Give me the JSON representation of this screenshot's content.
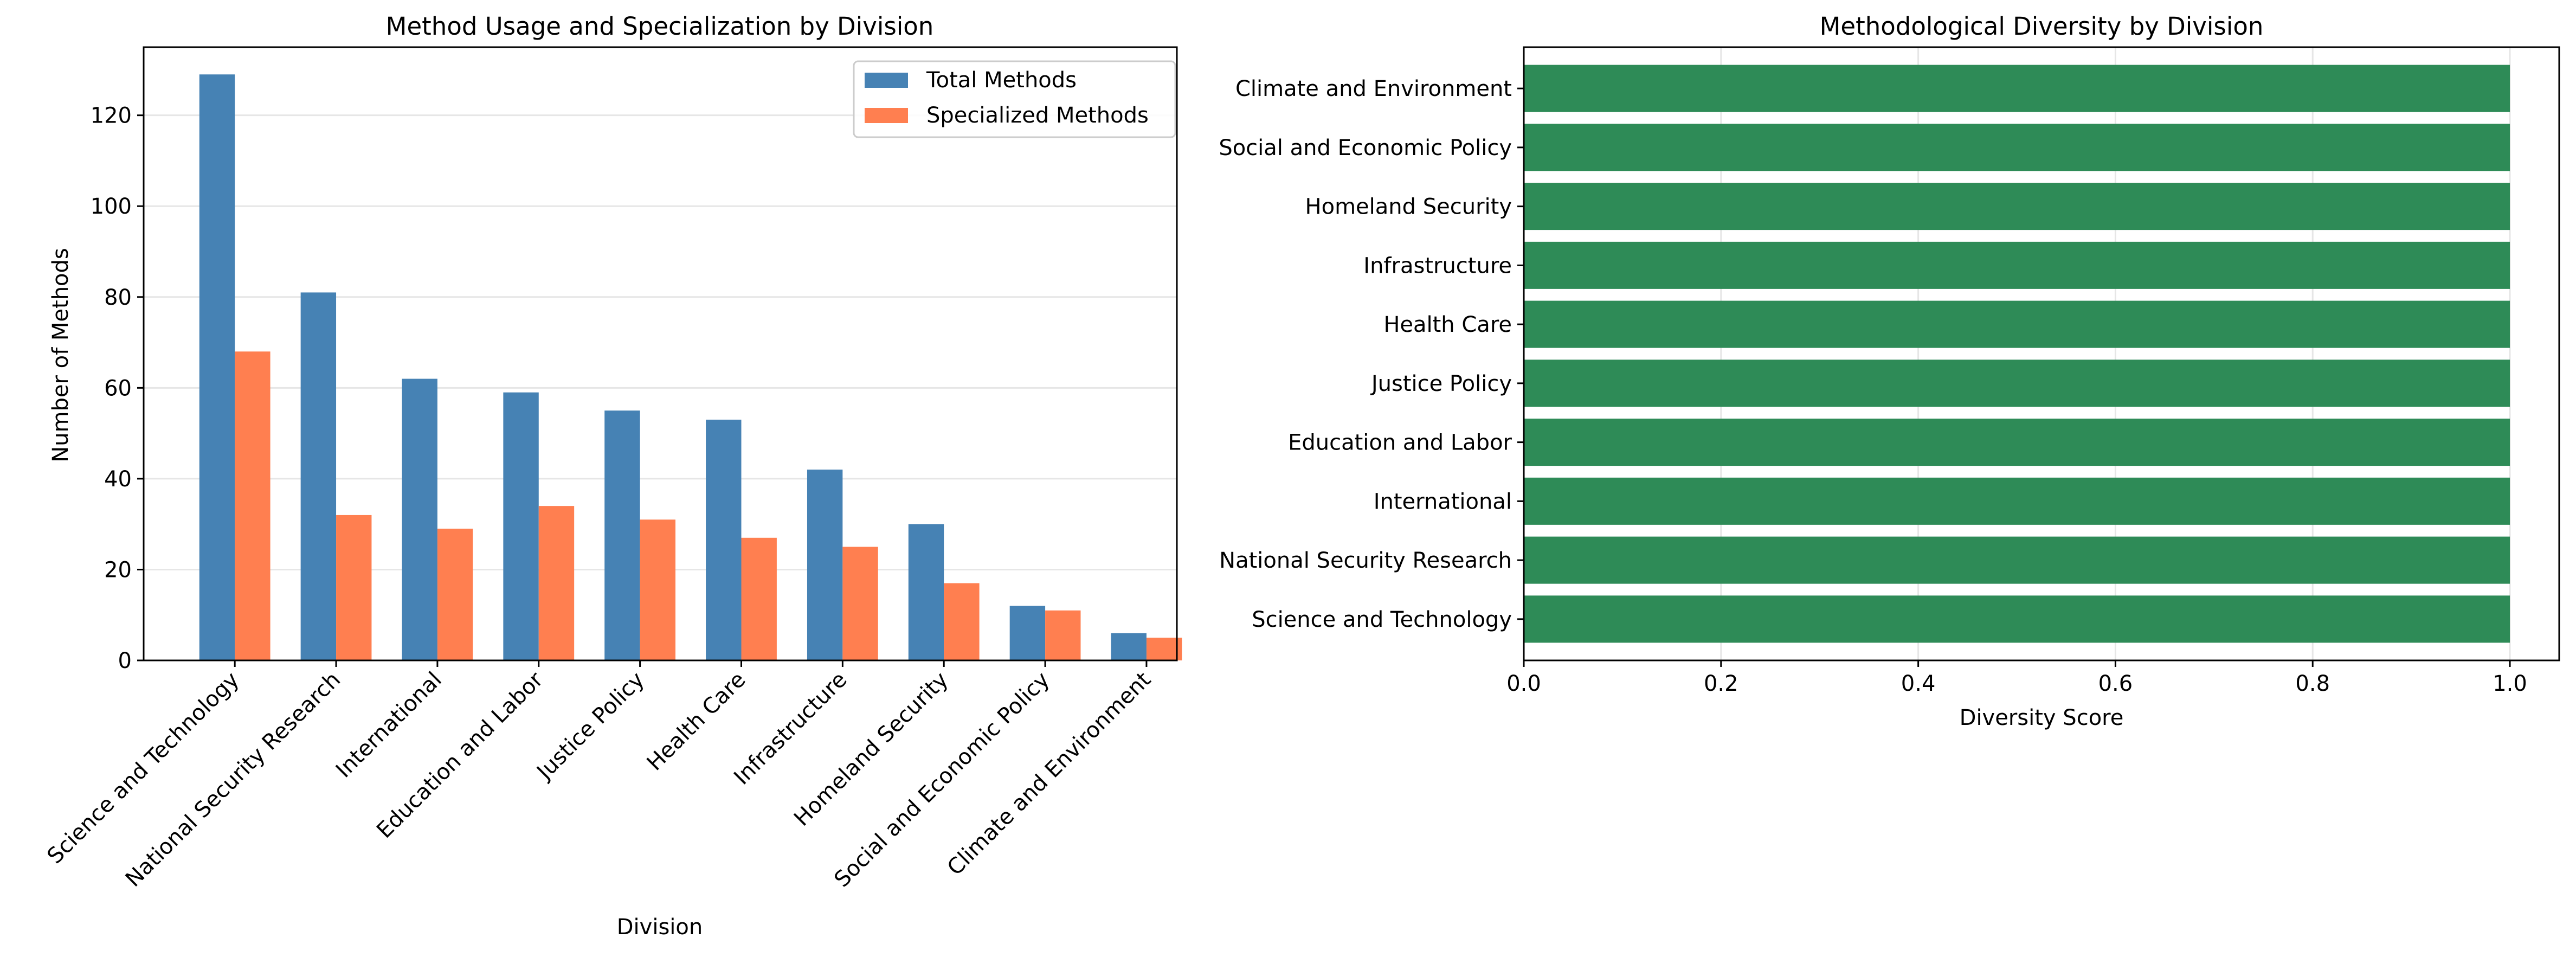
{
  "chart_data": [
    {
      "type": "bar",
      "title": "Method Usage and Specialization by Division",
      "xlabel": "Division",
      "ylabel": "Number of Methods",
      "categories": [
        "Science and Technology",
        "National Security Research",
        "International",
        "Education and Labor",
        "Justice Policy",
        "Health Care",
        "Infrastructure",
        "Homeland Security",
        "Social and Economic Policy",
        "Climate and Environment"
      ],
      "series": [
        {
          "name": "Total Methods",
          "values": [
            129,
            81,
            62,
            59,
            55,
            53,
            42,
            30,
            12,
            6
          ],
          "color": "#4682b4"
        },
        {
          "name": "Specialized Methods",
          "values": [
            68,
            32,
            29,
            34,
            31,
            27,
            25,
            17,
            11,
            5
          ],
          "color": "#ff7f50"
        }
      ],
      "ylim": [
        0,
        135
      ],
      "yticks": [
        "0",
        "20",
        "40",
        "60",
        "80",
        "100",
        "120"
      ],
      "grid": "horizontal",
      "legend_position": "top-right"
    },
    {
      "type": "bar",
      "orientation": "horizontal",
      "title": "Methodological Diversity by Division",
      "xlabel": "Diversity Score",
      "ylabel": "",
      "categories": [
        "Science and Technology",
        "National Security Research",
        "International",
        "Education and Labor",
        "Justice Policy",
        "Health Care",
        "Infrastructure",
        "Homeland Security",
        "Social and Economic Policy",
        "Climate and Environment"
      ],
      "values": [
        1.0,
        1.0,
        1.0,
        1.0,
        1.0,
        1.0,
        1.0,
        1.0,
        1.0,
        1.0
      ],
      "color": "#2e8b57",
      "xlim": [
        0,
        1.05
      ],
      "xticks": [
        "0.0",
        "0.2",
        "0.4",
        "0.6",
        "0.8",
        "1.0"
      ],
      "grid": "vertical"
    }
  ]
}
